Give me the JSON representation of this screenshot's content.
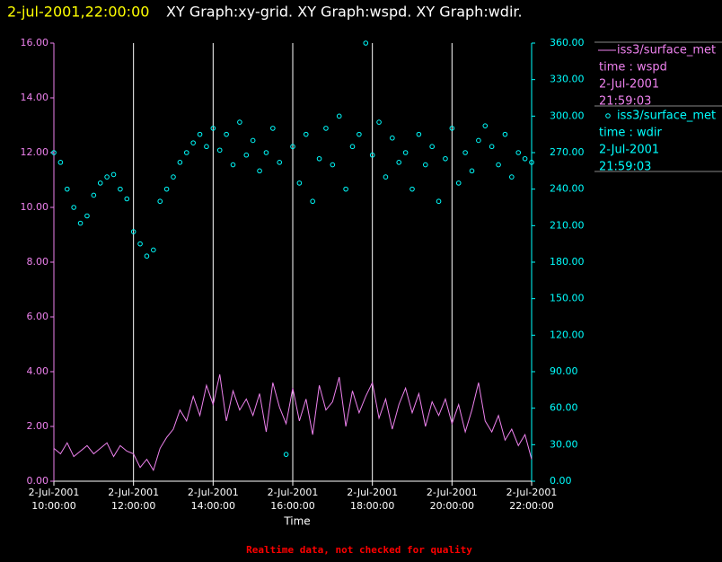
{
  "chart_data": {
    "type": "line",
    "header": {
      "timestamp": "2-jul-2001,22:00:00",
      "graphs": "XY Graph:xy-grid.  XY Graph:wspd.  XY Graph:wdir."
    },
    "xlabel": "Time",
    "footer": "Realtime data, not checked for quality",
    "grid": true,
    "x": [
      "2001-07-02T10:00:00",
      "2001-07-02T10:10:00",
      "2001-07-02T10:20:00",
      "2001-07-02T10:30:00",
      "2001-07-02T10:40:00",
      "2001-07-02T10:50:00",
      "2001-07-02T11:00:00",
      "2001-07-02T11:10:00",
      "2001-07-02T11:20:00",
      "2001-07-02T11:30:00",
      "2001-07-02T11:40:00",
      "2001-07-02T11:50:00",
      "2001-07-02T12:00:00",
      "2001-07-02T12:10:00",
      "2001-07-02T12:20:00",
      "2001-07-02T12:30:00",
      "2001-07-02T12:40:00",
      "2001-07-02T12:50:00",
      "2001-07-02T13:00:00",
      "2001-07-02T13:10:00",
      "2001-07-02T13:20:00",
      "2001-07-02T13:30:00",
      "2001-07-02T13:40:00",
      "2001-07-02T13:50:00",
      "2001-07-02T14:00:00",
      "2001-07-02T14:10:00",
      "2001-07-02T14:20:00",
      "2001-07-02T14:30:00",
      "2001-07-02T14:40:00",
      "2001-07-02T14:50:00",
      "2001-07-02T15:00:00",
      "2001-07-02T15:10:00",
      "2001-07-02T15:20:00",
      "2001-07-02T15:30:00",
      "2001-07-02T15:40:00",
      "2001-07-02T15:50:00",
      "2001-07-02T16:00:00",
      "2001-07-02T16:10:00",
      "2001-07-02T16:20:00",
      "2001-07-02T16:30:00",
      "2001-07-02T16:40:00",
      "2001-07-02T16:50:00",
      "2001-07-02T17:00:00",
      "2001-07-02T17:10:00",
      "2001-07-02T17:20:00",
      "2001-07-02T17:30:00",
      "2001-07-02T17:40:00",
      "2001-07-02T17:50:00",
      "2001-07-02T18:00:00",
      "2001-07-02T18:10:00",
      "2001-07-02T18:20:00",
      "2001-07-02T18:30:00",
      "2001-07-02T18:40:00",
      "2001-07-02T18:50:00",
      "2001-07-02T19:00:00",
      "2001-07-02T19:10:00",
      "2001-07-02T19:20:00",
      "2001-07-02T19:30:00",
      "2001-07-02T19:40:00",
      "2001-07-02T19:50:00",
      "2001-07-02T20:00:00",
      "2001-07-02T20:10:00",
      "2001-07-02T20:20:00",
      "2001-07-02T20:30:00",
      "2001-07-02T20:40:00",
      "2001-07-02T20:50:00",
      "2001-07-02T21:00:00",
      "2001-07-02T21:10:00",
      "2001-07-02T21:20:00",
      "2001-07-02T21:30:00",
      "2001-07-02T21:40:00",
      "2001-07-02T21:50:00",
      "2001-07-02T22:00:00"
    ],
    "xlim": [
      "2001-07-02T10:00:00",
      "2001-07-02T22:00:00"
    ],
    "xticks": [
      {
        "value": "2001-07-02T10:00:00",
        "label": [
          "2-Jul-2001",
          "10:00:00"
        ]
      },
      {
        "value": "2001-07-02T12:00:00",
        "label": [
          "2-Jul-2001",
          "12:00:00"
        ]
      },
      {
        "value": "2001-07-02T14:00:00",
        "label": [
          "2-Jul-2001",
          "14:00:00"
        ]
      },
      {
        "value": "2001-07-02T16:00:00",
        "label": [
          "2-Jul-2001",
          "16:00:00"
        ]
      },
      {
        "value": "2001-07-02T18:00:00",
        "label": [
          "2-Jul-2001",
          "18:00:00"
        ]
      },
      {
        "value": "2001-07-02T20:00:00",
        "label": [
          "2-Jul-2001",
          "20:00:00"
        ]
      },
      {
        "value": "2001-07-02T22:00:00",
        "label": [
          "2-Jul-2001",
          "22:00:00"
        ]
      }
    ],
    "ylim": [
      0,
      16
    ],
    "yticks": [
      {
        "value": 0,
        "label": "0.00"
      },
      {
        "value": 2,
        "label": "2.00"
      },
      {
        "value": 4,
        "label": "4.00"
      },
      {
        "value": 6,
        "label": "6.00"
      },
      {
        "value": 8,
        "label": "8.00"
      },
      {
        "value": 10,
        "label": "10.00"
      },
      {
        "value": 12,
        "label": "12.00"
      },
      {
        "value": 14,
        "label": "14.00"
      },
      {
        "value": 16,
        "label": "16.00"
      }
    ],
    "y2lim": [
      0,
      360
    ],
    "y2ticks": [
      {
        "value": 0,
        "label": "0.00"
      },
      {
        "value": 30,
        "label": "30.00"
      },
      {
        "value": 60,
        "label": "60.00"
      },
      {
        "value": 90,
        "label": "90.00"
      },
      {
        "value": 120,
        "label": "120.00"
      },
      {
        "value": 150,
        "label": "150.00"
      },
      {
        "value": 180,
        "label": "180.00"
      },
      {
        "value": 210,
        "label": "210.00"
      },
      {
        "value": 240,
        "label": "240.00"
      },
      {
        "value": 270,
        "label": "270.00"
      },
      {
        "value": 300,
        "label": "300.00"
      },
      {
        "value": 330,
        "label": "330.00"
      },
      {
        "value": 360,
        "label": "360.00"
      }
    ],
    "series": [
      {
        "name": "iss3/surface_met",
        "legend_text": [
          "time : wspd",
          "2-Jul-2001",
          "21:59:03"
        ],
        "color": "#ee82ee",
        "style": "line",
        "values": [
          1.2,
          1.0,
          1.4,
          0.9,
          1.1,
          1.3,
          1.0,
          1.2,
          1.4,
          0.9,
          1.3,
          1.1,
          1.0,
          0.5,
          0.8,
          0.4,
          1.2,
          1.6,
          1.9,
          2.6,
          2.2,
          3.1,
          2.4,
          3.5,
          2.8,
          3.9,
          2.2,
          3.3,
          2.6,
          3.0,
          2.4,
          3.2,
          1.8,
          3.6,
          2.7,
          2.1,
          3.4,
          2.2,
          3.0,
          1.7,
          3.5,
          2.6,
          2.9,
          3.8,
          2.0,
          3.3,
          2.5,
          3.1,
          3.6,
          2.3,
          3.0,
          1.9,
          2.8,
          3.4,
          2.5,
          3.2,
          2.0,
          2.9,
          2.4,
          3.0,
          2.1,
          2.8,
          1.8,
          2.6,
          3.6,
          2.2,
          1.8,
          2.4,
          1.5,
          1.9,
          1.3,
          1.7,
          0.8
        ]
      },
      {
        "name": "iss3/surface_met",
        "legend_text": [
          "time : wdir",
          "2-Jul-2001",
          "21:59:03"
        ],
        "color": "#00ffff",
        "style": "scatter",
        "axis": "y2",
        "values": [
          270,
          262,
          240,
          225,
          212,
          218,
          235,
          245,
          250,
          252,
          240,
          232,
          205,
          195,
          185,
          190,
          230,
          240,
          250,
          262,
          270,
          278,
          285,
          275,
          290,
          272,
          285,
          260,
          295,
          268,
          280,
          255,
          270,
          290,
          262,
          22,
          275,
          245,
          285,
          230,
          265,
          290,
          260,
          300,
          240,
          275,
          285,
          360,
          268,
          295,
          250,
          282,
          262,
          270,
          240,
          285,
          260,
          275,
          230,
          265,
          290,
          245,
          270,
          255,
          280,
          292,
          275,
          260,
          285,
          250,
          270,
          265,
          262
        ]
      }
    ]
  }
}
